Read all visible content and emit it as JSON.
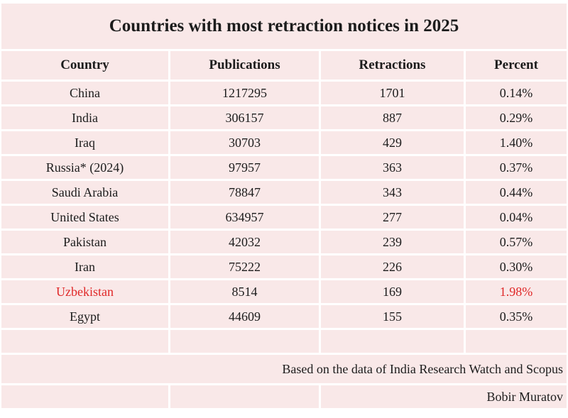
{
  "chart_data": {
    "type": "table",
    "title": "Countries with most retraction notices in 2025",
    "columns": [
      "Country",
      "Publications",
      "Retractions",
      "Percent"
    ],
    "rows": [
      {
        "country": "China",
        "publications": 1217295,
        "retractions": 1701,
        "percent": "0.14%"
      },
      {
        "country": "India",
        "publications": 306157,
        "retractions": 887,
        "percent": "0.29%"
      },
      {
        "country": "Iraq",
        "publications": 30703,
        "retractions": 429,
        "percent": "1.40%"
      },
      {
        "country": "Russia* (2024)",
        "publications": 97957,
        "retractions": 363,
        "percent": "0.37%"
      },
      {
        "country": "Saudi Arabia",
        "publications": 78847,
        "retractions": 343,
        "percent": "0.44%"
      },
      {
        "country": "United States",
        "publications": 634957,
        "retractions": 277,
        "percent": "0.04%"
      },
      {
        "country": "Pakistan",
        "publications": 42032,
        "retractions": 239,
        "percent": "0.57%"
      },
      {
        "country": "Iran",
        "publications": 75222,
        "retractions": 226,
        "percent": "0.30%"
      },
      {
        "country": "Uzbekistan",
        "publications": 8514,
        "retractions": 169,
        "percent": "1.98%"
      },
      {
        "country": "Egypt",
        "publications": 44609,
        "retractions": 155,
        "percent": "0.35%"
      }
    ],
    "highlight": {
      "row": "Uzbekistan",
      "fields": [
        "country",
        "percent"
      ],
      "color": "#e02828"
    },
    "footer_source": "Based on the data of India Research Watch and Scopus",
    "footer_author": "Bobir Muratov",
    "layout": {
      "grid": "on",
      "cell_background": "#f9e8e8",
      "grid_color": "#ffffff",
      "text_color": "#1c1c1c"
    }
  }
}
